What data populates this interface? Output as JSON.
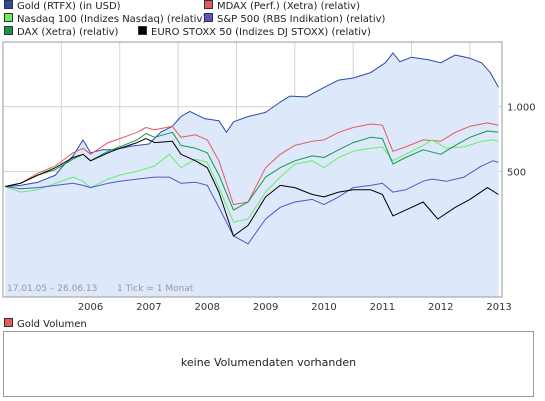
{
  "legend": [
    {
      "label": "Gold (RTFX) (in USD)",
      "color": "#2a4aa8"
    },
    {
      "label": "MDAX (Perf.) (Xetra) (relativ)",
      "color": "#e35b5b"
    },
    {
      "label": "Nasdaq 100 (Indizes Nasdaq) (relativ)",
      "color": "#66ee66"
    },
    {
      "label": "S&P 500 (RBS Indikation) (relativ)",
      "color": "#5555cc"
    },
    {
      "label": "DAX (Xetra) (relativ)",
      "color": "#119944"
    },
    {
      "label": "EURO STOXX 50 (Indizes DJ STOXX) (relativ)",
      "color": "#000000"
    }
  ],
  "date_range": "17.01.05 – 26.06.13",
  "tick_info": "1 Tick = 1 Monat",
  "volume": {
    "label": "Gold Volumen",
    "message": "keine Volumendaten vorhanden"
  },
  "chart_data": {
    "type": "line",
    "x_ticks": [
      "2006",
      "2007",
      "2008",
      "2009",
      "2010",
      "2011",
      "2012",
      "2013"
    ],
    "y_ticks": [
      "500",
      "1.000"
    ],
    "grid": true,
    "legend_position": "top",
    "series": [
      {
        "name": "Gold (RTFX) (in USD)",
        "color": "#2a4aa8",
        "fill": "#dde8fb",
        "x": [
          2005.04,
          2005.3,
          2005.6,
          2005.9,
          2006.0,
          2006.2,
          2006.37,
          2006.5,
          2006.7,
          2006.9,
          2007.2,
          2007.5,
          2007.7,
          2007.9,
          2008.05,
          2008.2,
          2008.45,
          2008.7,
          2008.83,
          2008.95,
          2009.2,
          2009.5,
          2009.75,
          2009.92,
          2010.2,
          2010.5,
          2010.75,
          2011.0,
          2011.3,
          2011.55,
          2011.68,
          2011.8,
          2012.0,
          2012.3,
          2012.5,
          2012.75,
          2013.0,
          2013.2,
          2013.35,
          2013.49
        ],
        "y": [
          425,
          430,
          445,
          480,
          520,
          590,
          700,
          610,
          630,
          630,
          655,
          670,
          760,
          810,
          900,
          950,
          880,
          860,
          760,
          850,
          900,
          940,
          1050,
          1120,
          1110,
          1230,
          1330,
          1360,
          1440,
          1600,
          1780,
          1620,
          1700,
          1650,
          1600,
          1740,
          1680,
          1600,
          1440,
          1230
        ]
      },
      {
        "name": "MDAX (Perf.) (Xetra) (relativ)",
        "color": "#e35b5b",
        "x": [
          2005.04,
          2005.3,
          2005.6,
          2005.9,
          2006.2,
          2006.37,
          2006.5,
          2006.8,
          2007.0,
          2007.3,
          2007.45,
          2007.6,
          2007.9,
          2008.05,
          2008.3,
          2008.5,
          2008.7,
          2008.95,
          2009.2,
          2009.5,
          2009.75,
          2010.0,
          2010.3,
          2010.5,
          2010.75,
          2011.0,
          2011.3,
          2011.5,
          2011.68,
          2011.9,
          2012.2,
          2012.5,
          2012.75,
          2013.0,
          2013.3,
          2013.49
        ],
        "y": [
          425,
          440,
          490,
          530,
          610,
          640,
          600,
          680,
          710,
          760,
          800,
          780,
          810,
          720,
          740,
          700,
          560,
          350,
          360,
          520,
          600,
          660,
          690,
          700,
          760,
          800,
          830,
          820,
          620,
          650,
          700,
          690,
          760,
          810,
          840,
          820
        ]
      },
      {
        "name": "Nasdaq 100 (Indizes Nasdaq) (relativ)",
        "color": "#66ee66",
        "x": [
          2005.04,
          2005.3,
          2005.6,
          2005.9,
          2006.2,
          2006.37,
          2006.5,
          2006.8,
          2007.0,
          2007.3,
          2007.6,
          2007.85,
          2008.05,
          2008.3,
          2008.5,
          2008.7,
          2008.95,
          2009.2,
          2009.5,
          2009.75,
          2010.0,
          2010.3,
          2010.5,
          2010.75,
          2011.0,
          2011.3,
          2011.5,
          2011.68,
          2011.9,
          2012.2,
          2012.35,
          2012.6,
          2012.9,
          2013.2,
          2013.4,
          2013.49
        ],
        "y": [
          425,
          400,
          410,
          440,
          470,
          450,
          420,
          460,
          480,
          500,
          530,
          600,
          520,
          570,
          550,
          420,
          290,
          300,
          400,
          470,
          540,
          560,
          520,
          580,
          620,
          640,
          650,
          560,
          600,
          660,
          700,
          640,
          650,
          690,
          700,
          690
        ]
      },
      {
        "name": "S&P 500 (RBS Indikation) (relativ)",
        "color": "#5555cc",
        "x": [
          2005.04,
          2005.3,
          2005.6,
          2005.9,
          2006.2,
          2006.37,
          2006.5,
          2006.8,
          2007.0,
          2007.3,
          2007.6,
          2007.85,
          2008.05,
          2008.3,
          2008.5,
          2008.7,
          2008.95,
          2009.2,
          2009.5,
          2009.75,
          2010.0,
          2010.3,
          2010.5,
          2010.75,
          2011.0,
          2011.3,
          2011.5,
          2011.68,
          2011.9,
          2012.2,
          2012.35,
          2012.6,
          2012.9,
          2013.2,
          2013.4,
          2013.49
        ],
        "y": [
          425,
          415,
          420,
          430,
          440,
          430,
          420,
          440,
          450,
          460,
          470,
          470,
          440,
          445,
          430,
          340,
          250,
          230,
          300,
          340,
          360,
          370,
          350,
          380,
          420,
          430,
          440,
          400,
          410,
          450,
          460,
          450,
          470,
          530,
          560,
          550
        ]
      },
      {
        "name": "DAX (Xetra) (relativ)",
        "color": "#119944",
        "x": [
          2005.04,
          2005.3,
          2005.6,
          2005.9,
          2006.2,
          2006.37,
          2006.5,
          2006.8,
          2007.0,
          2007.3,
          2007.45,
          2007.6,
          2007.9,
          2008.05,
          2008.3,
          2008.5,
          2008.7,
          2008.95,
          2009.2,
          2009.5,
          2009.75,
          2010.0,
          2010.3,
          2010.5,
          2010.75,
          2011.0,
          2011.3,
          2011.5,
          2011.68,
          2011.9,
          2012.2,
          2012.5,
          2012.75,
          2013.0,
          2013.3,
          2013.49
        ],
        "y": [
          425,
          440,
          480,
          510,
          570,
          600,
          560,
          620,
          650,
          700,
          750,
          720,
          760,
          660,
          640,
          610,
          480,
          330,
          360,
          470,
          520,
          560,
          590,
          580,
          630,
          680,
          720,
          710,
          540,
          580,
          630,
          600,
          660,
          720,
          770,
          760
        ]
      },
      {
        "name": "EURO STOXX 50 (Indizes DJ STOXX) (relativ)",
        "color": "#000000",
        "x": [
          2005.04,
          2005.3,
          2005.6,
          2005.9,
          2006.2,
          2006.37,
          2006.5,
          2006.8,
          2007.0,
          2007.3,
          2007.45,
          2007.6,
          2007.9,
          2008.05,
          2008.3,
          2008.5,
          2008.7,
          2008.95,
          2009.2,
          2009.5,
          2009.75,
          2010.0,
          2010.3,
          2010.5,
          2010.75,
          2011.0,
          2011.3,
          2011.5,
          2011.68,
          2011.9,
          2012.2,
          2012.45,
          2012.75,
          2013.0,
          2013.3,
          2013.49
        ],
        "y": [
          425,
          440,
          480,
          520,
          580,
          600,
          560,
          610,
          640,
          680,
          710,
          680,
          690,
          600,
          560,
          520,
          400,
          250,
          280,
          380,
          430,
          420,
          390,
          380,
          400,
          410,
          410,
          390,
          310,
          330,
          360,
          300,
          340,
          370,
          420,
          390
        ]
      }
    ]
  }
}
